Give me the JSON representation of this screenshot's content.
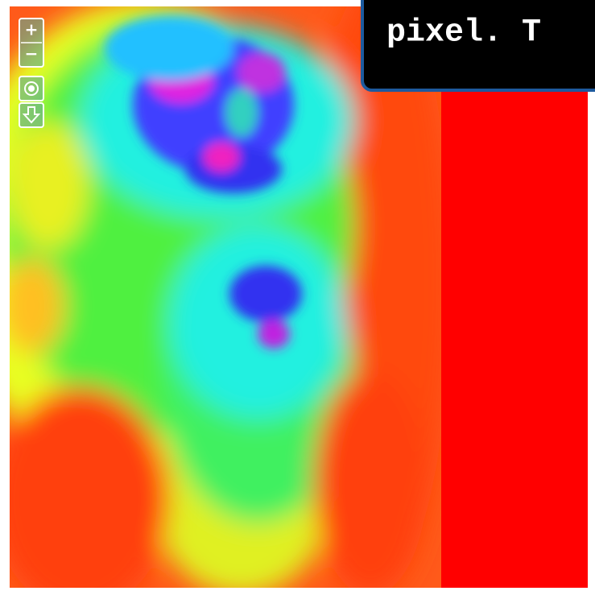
{
  "tooltip": {
    "text": "pixel. T"
  },
  "controls": {
    "zoom_in": "+",
    "zoom_out": "−"
  }
}
